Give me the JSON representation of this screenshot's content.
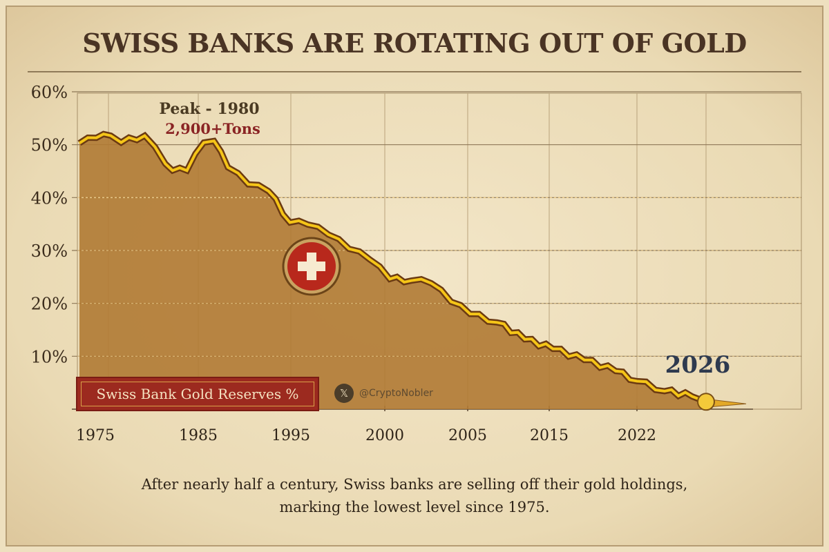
{
  "chart_data": {
    "type": "area",
    "title": "SWISS BANKS ARE ROTATING OUT OF GOLD",
    "caption": [
      "After nearly half a century, Swiss banks are selling off their gold holdings,",
      "marking the lowest level since 1975."
    ],
    "legend": "Swiss Bank Gold Reserves %",
    "watermark": "@CryptoNobler",
    "y_ticks": [
      "60%",
      "50%",
      "40%",
      "30%",
      "20%",
      "10%"
    ],
    "y_tick_values": [
      60,
      50,
      40,
      30,
      20,
      10
    ],
    "ylim": [
      0,
      60
    ],
    "x_ticks": [
      "1975",
      "1985",
      "1995",
      "2000",
      "2005",
      "2015",
      "2022"
    ],
    "x_tick_values": [
      1975,
      1985,
      1995,
      2000,
      2005,
      2015,
      2022
    ],
    "grid": true,
    "annotations": {
      "peak_label": "Peak - 1980",
      "peak_value": "2,900+Tons",
      "end_label": "2026"
    },
    "colors": {
      "line": "#f5c518",
      "line_outline": "#6b3a12",
      "fill": "#b07a34",
      "flag": "#b8281c",
      "title": "#4a3424",
      "end_label": "#2e3a4f"
    },
    "series": [
      {
        "x": [
          1973.5,
          1975.1,
          1976.5,
          1977.5,
          1979.8,
          1981.8,
          1982.5,
          1983.9,
          1985.6,
          1986.7,
          1988.2,
          1990.4,
          1992.6,
          1994.9,
          1995.9,
          1997.0,
          1998.1,
          1999.2,
          2000.3,
          2001.6,
          2002.8,
          2004.0,
          2005.3,
          2008.6,
          2012.0,
          2015.3,
          2017.8,
          2020.3,
          2022.0,
          2023.6,
          2025.2,
          2026.0
        ],
        "y": [
          50.3,
          51.3,
          51.7,
          50.4,
          51.7,
          46.4,
          45.1,
          45.1,
          50.4,
          50.7,
          45.7,
          42.5,
          41.2,
          35.3,
          34.9,
          33.0,
          30.3,
          28.3,
          24.6,
          24.3,
          23.8,
          20.3,
          18.0,
          16.4,
          13.2,
          11.4,
          9.3,
          7.2,
          5.3,
          3.4,
          2.4,
          1.4
        ]
      }
    ]
  }
}
